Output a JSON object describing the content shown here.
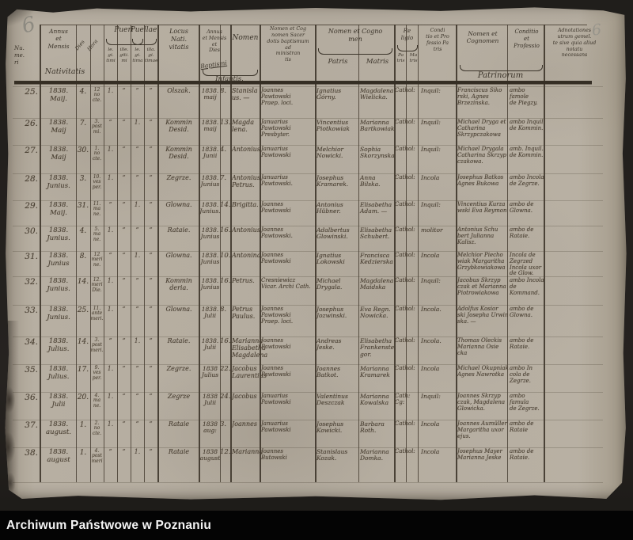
{
  "archive_bar": {
    "label": "Archiwum Państwowe w Poznaniu"
  },
  "pencil_marks": {
    "top_left": "6",
    "top_right": "6"
  },
  "header": {
    "numeri": "Nu.\nme.\nri",
    "annus_mensis": "Annus\net\nMensis",
    "nativitatis": "Nativitatis",
    "dies": "Dies",
    "hora": "Hora",
    "pueri": "Pueri",
    "pueri_leg": "le.\ngi.\ntimi",
    "pueri_illeg": "ille.\ngiti.\nmi",
    "puellae": "Puellae",
    "puellae_leg": "le.\ngi.\ntima",
    "puellae_illeg": "illa.\ngi.\ntimae",
    "locus": "Locus\nNati.\nvitatis",
    "annus_baptismi": "Annus\net Mensis\net\nDies",
    "baptismi": "Baptismi",
    "nomen": "Nomen",
    "infantis": "Infantis.",
    "minister": "Nomen et Cog\nnomen Sacer\ndotis baptismum\nad\nministran\ntis",
    "nomen_cognomen": "Nomen et Cogno\nmen",
    "patris": "Patris",
    "matris": "Matris",
    "religio": "Re\nligio",
    "religio_patris": "Pa\ntris",
    "religio_matris": "Ma\ntris",
    "conditio_patris": "Condi\ntio et Pro\nfessio Pa\ntris",
    "patrini_nomen": "Nomen et\nCognomen",
    "patrini_conditio": "Conditio\net\nProfessio",
    "patrinorum": "Patrinorum",
    "adnotationes": "Adnotationes\nutrum gemel.\nte sive quia aliud\nnotatu\nnecessans"
  },
  "records": [
    {
      "no": "25.",
      "birth": "1838.\nMaij.",
      "dies": "4.",
      "hora": "12\nno\ncte.",
      "pueri_leg": "1.",
      "pueri_illeg": "”",
      "puellae_leg": "”",
      "puellae_illeg": "”",
      "locus": "Olszak.",
      "bapt": "1838.\nmaij",
      "bapt_day": "8.",
      "nomen": "Stanisla\nus. —",
      "minister": "Joannes\nPawtowski\nPraep. loci.",
      "pater": "Ignatius\nGórny.",
      "mater": "Magdalena\nWielicka.",
      "religio": "Cathol:",
      "conditio": "Inquil:",
      "patrini": "Franciscus Siko\nrski, Agnes\nBrzezinska.",
      "patrini_conditio": "ambo famole\nde Piegzy.",
      "adnot": ""
    },
    {
      "no": "26.",
      "birth": "1838.\nMaij",
      "dies": "7.",
      "hora": "3.\npost\nmi.",
      "pueri_leg": "”",
      "pueri_illeg": "”",
      "puellae_leg": "1.",
      "puellae_illeg": "”",
      "locus": "Kommin\nDesid.",
      "bapt": "1838.\nmaij",
      "bapt_day": "13.",
      "nomen": "Magda\nlena.",
      "minister": "Januarius\nPawtowski\nPresbyter.",
      "pater": "Vincentius\nPiotkowiak",
      "mater": "Marianna\nBartkowiak",
      "religio": "Cathol:",
      "conditio": "Inquil:",
      "patrini": "Michael Dryga et\nCatharina\nSkrzypczakowa",
      "patrini_conditio": "ambo Inquil.\nde Kommin.",
      "adnot": ""
    },
    {
      "no": "27.",
      "birth": "1838.\nMaij",
      "dies": "30.",
      "hora": "1.\nno\ncte.",
      "pueri_leg": "1.",
      "pueri_illeg": "”",
      "puellae_leg": "”",
      "puellae_illeg": "”",
      "locus": "Kommin\nDesid.",
      "bapt": "1838.\nJunii",
      "bapt_day": "4.",
      "nomen": "Antonius",
      "minister": "Januarius\nPawtowski",
      "pater": "Melchior\nNowicki.",
      "mater": "Sophia\nSkorzynska",
      "religio": "Cathol:",
      "conditio": "Inquil:",
      "patrini": "Michael Drygala\nCatharina Skrzyp\nczakowa.",
      "patrini_conditio": "amb. Inquil.\nde Kommin.",
      "adnot": ""
    },
    {
      "no": "28.",
      "birth": "1838.\nJunius.",
      "dies": "3.",
      "hora": "10.\nves\nper.",
      "pueri_leg": "1.",
      "pueri_illeg": "”",
      "puellae_leg": "”",
      "puellae_illeg": "”",
      "locus": "Zegrze.",
      "bapt": "1838.\nJunius",
      "bapt_day": "7.",
      "nomen": "Antonius\nPetrus.",
      "minister": "Januarius\nPawtowski.",
      "pater": "Josephus\nKramarek.",
      "mater": "Anna\nBilska.",
      "religio": "Cathol:",
      "conditio": "Incola",
      "patrini": "Josephus Batkos\nAgnes Bukowa",
      "patrini_conditio": "ambo Incola\nde Zegrze.",
      "adnot": ""
    },
    {
      "no": "29.",
      "birth": "1838.\nMaij.",
      "dies": "31.",
      "hora": "11.\nma\nne.",
      "pueri_leg": "”",
      "pueri_illeg": "”",
      "puellae_leg": "1.",
      "puellae_illeg": "”",
      "locus": "Glowna.",
      "bapt": "1838.\nJunius.",
      "bapt_day": "14.",
      "nomen": "Brigitta.",
      "minister": "Joannes\nPawtowski",
      "pater": "Antonius\nHübner.",
      "mater": "Elisabetha\nAdam. —",
      "religio": "Cathol:",
      "conditio": "Inquil:",
      "patrini": "Vincentius Kurza\nwski  Eva Reymon",
      "patrini_conditio": "ambo de\nGlowna.",
      "adnot": ""
    },
    {
      "no": "30.",
      "birth": "1838.\nJunius.",
      "dies": "4.",
      "hora": "5.\nma\nne.",
      "pueri_leg": "1.",
      "pueri_illeg": "”",
      "puellae_leg": "”",
      "puellae_illeg": "”",
      "locus": "Rataie.",
      "bapt": "1838.\nJunius",
      "bapt_day": "16.",
      "nomen": "Antonius",
      "minister": "Joannes\nPawtowski.",
      "pater": "Adalbertus\nGlowinski.",
      "mater": "Elisabetha\nSchubert.",
      "religio": "Cathol:",
      "conditio": "molitor",
      "patrini": "Antonius Schu\nbert Julianna\nKalisz.",
      "patrini_conditio": "ambo de\nRataie.",
      "adnot": ""
    },
    {
      "no": "31.",
      "birth": "1838.\nJunius",
      "dies": "8.",
      "hora": "12\nmeri\nne.",
      "pueri_leg": "”",
      "pueri_illeg": "”",
      "puellae_leg": "1.",
      "puellae_illeg": "”",
      "locus": "Glowna.",
      "bapt": "1838.\nJunius",
      "bapt_day": "10.",
      "nomen": "Antonina",
      "minister": "Joannes\nPawtowski",
      "pater": "Ignatius\nLokowski",
      "mater": "Francisca\nKedzierska",
      "religio": "Cathol:",
      "conditio": "Incola",
      "patrini": "Melchior Piecho\nwiak Margaritha\nGrzybkowiakowa",
      "patrini_conditio": "Incola de\nZegrzed\nIncola uxor de Glow.",
      "adnot": ""
    },
    {
      "no": "32.",
      "birth": "1838.\nJunius.",
      "dies": "14.",
      "hora": "12.\nmeri\nDie.",
      "pueri_leg": "1.",
      "pueri_illeg": "”",
      "puellae_leg": "”",
      "puellae_illeg": "”",
      "locus": "Kommin\nderia.",
      "bapt": "1838.\nJunius",
      "bapt_day": "16.",
      "nomen": "Petrus.",
      "minister": "Cresniewicz\nVicar. Archi Cath.",
      "pater": "Michael\nDrygala.",
      "mater": "Magdalena\nMaidska",
      "religio": "Cathol:",
      "conditio": "Inquil:",
      "patrini": "Jacobus Skrzyp\nczak et Marianna\nPiotrowiakowa",
      "patrini_conditio": "ambo Incola\nde Kommand.",
      "adnot": ""
    },
    {
      "no": "33.",
      "birth": "1838.\nJunius.",
      "dies": "25.",
      "hora": "11.\nante\nmeri.",
      "pueri_leg": "1.",
      "pueri_illeg": "”",
      "puellae_leg": "”",
      "puellae_illeg": "”",
      "locus": "Glowna.",
      "bapt": "1838.\nJulii",
      "bapt_day": "8.",
      "nomen": "Petrus\nPaulus.",
      "minister": "Joannes\nPawtowski\nPraep. loci.",
      "pater": "Josephus\nJozwinski.",
      "mater": "Eva Regn.\nNowicka.",
      "religio": "Cathol:",
      "conditio": "Incola.",
      "patrini": "Adolfus Kosior\nski Josepha Urwin\nska. —",
      "patrini_conditio": "ambo de\nGlowna.",
      "adnot": ""
    },
    {
      "no": "34.",
      "birth": "1838.\nJulius.",
      "dies": "14.",
      "hora": "3.\npost\nmeri.",
      "pueri_leg": "”",
      "pueri_illeg": "”",
      "puellae_leg": "1.",
      "puellae_illeg": "”",
      "locus": "Rataie.",
      "bapt": "1838.\nJulii",
      "bapt_day": "16.",
      "nomen": "Marianna\nElisabetha\nMagdalena",
      "minister": "Joannes\nPawtowski",
      "pater": "Andreas\nJeske.",
      "mater": "Elisabetha\nFrankenste.\ngor.",
      "religio": "Cathol:",
      "conditio": "Incola.",
      "patrini": "Thomas Oleckis\nMarianna Osie\ncka",
      "patrini_conditio": "ambo de\nRataie.",
      "adnot": ""
    },
    {
      "no": "35.",
      "birth": "1838.\nJulius.",
      "dies": "17.",
      "hora": "9.\nves\nper.",
      "pueri_leg": "1.",
      "pueri_illeg": "”",
      "puellae_leg": "”",
      "puellae_illeg": "”",
      "locus": "Zegrze.",
      "bapt": "1838\nJulius",
      "bapt_day": "22.",
      "nomen": "Jacobus\nLaurentius",
      "minister": "Joannes\nPawtowski",
      "pater": "Joannes\nBatkot.",
      "mater": "Marianna\nKramarek",
      "religio": "Cathol:",
      "conditio": "Incola",
      "patrini": "Michael Okupniak\nAgnes Nawrotka",
      "patrini_conditio": "ambo In\ncola de Zegrze.",
      "adnot": ""
    },
    {
      "no": "36.",
      "birth": "1838.\nJulii",
      "dies": "20.",
      "hora": "4.\nma\nne.",
      "pueri_leg": "1.",
      "pueri_illeg": "”",
      "puellae_leg": "”",
      "puellae_illeg": "”",
      "locus": "Zegrze",
      "bapt": "1838\nJulii",
      "bapt_day": "24.",
      "nomen": "Jacobus",
      "minister": "Januarius\nPawtowski",
      "pater": "Valentinus\nDeszczak",
      "mater": "Marianna\nKowalska",
      "religio": "Cath: Cg:",
      "conditio": "Inquil:",
      "patrini": "Joannes Skrzyp\nczak, Magdalena\nGlowicka.",
      "patrini_conditio": "ambo famula\nde Zegrze.",
      "adnot": ""
    },
    {
      "no": "37.",
      "birth": "1838.\naugust.",
      "dies": "1.",
      "hora": "2.\nno\ncte.",
      "pueri_leg": "1.",
      "pueri_illeg": "”",
      "puellae_leg": "”",
      "puellae_illeg": "”",
      "locus": "Rataie",
      "bapt": "1838\naug:",
      "bapt_day": "3.",
      "nomen": "Joannes",
      "minister": "Januarius\nPawtowski",
      "pater": "Josephus\nKowicki.",
      "mater": "Barbara\nRoth.",
      "religio": "Cathol:",
      "conditio": "Incola",
      "patrini": "Joannes Aumüller\nMargaritha uxor\nejus.",
      "patrini_conditio": "ambo de\nRataie",
      "adnot": ""
    },
    {
      "no": "38.",
      "birth": "1838.\naugust",
      "dies": "1.",
      "hora": "4.\npost\nmeri",
      "pueri_leg": "”",
      "pueri_illeg": "”",
      "puellae_leg": "1.",
      "puellae_illeg": "”",
      "locus": "Rataie",
      "bapt": "1838\naugust",
      "bapt_day": "12.",
      "nomen": "Marianna",
      "minister": "Joannes\nButowski",
      "pater": "Stanislaus\nKozak.",
      "mater": "Marianna\nDomka.",
      "religio": "Cathol:",
      "conditio": "Incola",
      "patrini": "Josephus Mayer\nMarianna Jeske",
      "patrini_conditio": "ambo de\nRataie.",
      "adnot": ""
    }
  ]
}
